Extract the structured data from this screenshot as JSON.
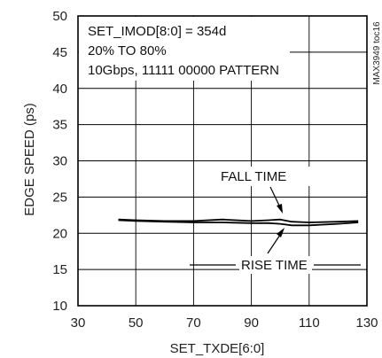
{
  "chart_data": {
    "type": "line",
    "xlabel": "SET_TXDE[6:0]",
    "ylabel": "EDGE SPEED (ps)",
    "xlim": [
      30,
      130
    ],
    "ylim": [
      10,
      50
    ],
    "xticks": [
      30,
      50,
      70,
      90,
      110,
      130
    ],
    "yticks": [
      10,
      15,
      20,
      25,
      30,
      35,
      40,
      45,
      50
    ],
    "grid": true,
    "annotations_box": [
      "SET_IMOD[8:0] = 354d",
      "20% TO 80%",
      "10Gbps, 11111 00000 PATTERN"
    ],
    "figure_id": "MAX3949 toc16",
    "series": [
      {
        "name": "FALL TIME",
        "x": [
          44,
          50,
          60,
          70,
          80,
          90,
          96,
          100,
          104,
          110,
          120,
          127
        ],
        "y": [
          21.9,
          21.8,
          21.7,
          21.7,
          21.9,
          21.7,
          21.8,
          21.9,
          21.6,
          21.5,
          21.6,
          21.7
        ]
      },
      {
        "name": "RISE TIME",
        "x": [
          44,
          50,
          60,
          70,
          80,
          90,
          96,
          100,
          104,
          110,
          120,
          127
        ],
        "y": [
          21.8,
          21.7,
          21.6,
          21.5,
          21.5,
          21.4,
          21.4,
          21.3,
          21.1,
          21.1,
          21.3,
          21.5
        ]
      }
    ]
  }
}
